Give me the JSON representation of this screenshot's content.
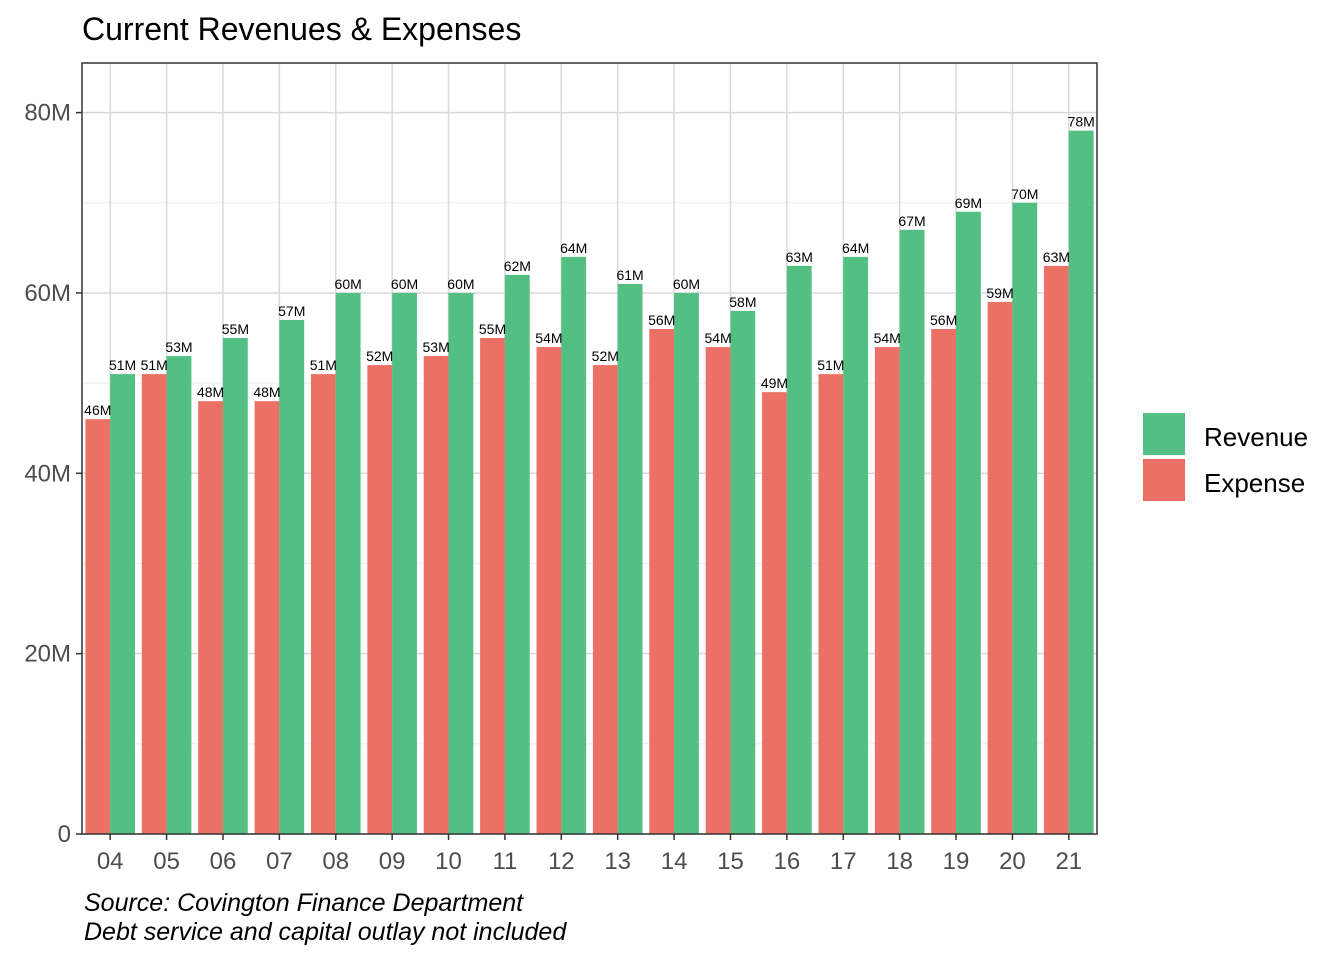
{
  "chart_data": {
    "type": "bar",
    "title": "Current Revenues & Expenses",
    "categories": [
      "04",
      "05",
      "06",
      "07",
      "08",
      "09",
      "10",
      "11",
      "12",
      "13",
      "14",
      "15",
      "16",
      "17",
      "18",
      "19",
      "20",
      "21"
    ],
    "series": [
      {
        "name": "Expense",
        "color": "#EB7065",
        "values": [
          46,
          51,
          48,
          48,
          51,
          52,
          53,
          55,
          54,
          52,
          56,
          54,
          49,
          51,
          54,
          56,
          59,
          63
        ],
        "labels": [
          "46M",
          "51M",
          "48M",
          "48M",
          "51M",
          "52M",
          "53M",
          "55M",
          "54M",
          "52M",
          "56M",
          "54M",
          "49M",
          "51M",
          "54M",
          "56M",
          "59M",
          "63M"
        ]
      },
      {
        "name": "Revenue",
        "color": "#53BF82",
        "values": [
          51,
          53,
          55,
          57,
          60,
          60,
          60,
          62,
          64,
          61,
          60,
          58,
          63,
          64,
          67,
          69,
          70,
          78
        ],
        "labels": [
          "51M",
          "53M",
          "55M",
          "57M",
          "60M",
          "60M",
          "60M",
          "62M",
          "64M",
          "61M",
          "60M",
          "58M",
          "63M",
          "64M",
          "67M",
          "69M",
          "70M",
          "78M"
        ]
      }
    ],
    "yticks": [
      {
        "value": 0,
        "label": "0"
      },
      {
        "value": 20,
        "label": "20M"
      },
      {
        "value": 40,
        "label": "40M"
      },
      {
        "value": 60,
        "label": "60M"
      },
      {
        "value": 80,
        "label": "80M"
      }
    ],
    "ylim": [
      0,
      85.5
    ],
    "grid": true,
    "legend": {
      "position": "right",
      "entries": [
        {
          "name": "Revenue",
          "color": "#53BF82"
        },
        {
          "name": "Expense",
          "color": "#EB7065"
        }
      ]
    },
    "caption": {
      "line1": "Source: Covington Finance Department",
      "line2": "Debt service and capital outlay not included"
    }
  }
}
